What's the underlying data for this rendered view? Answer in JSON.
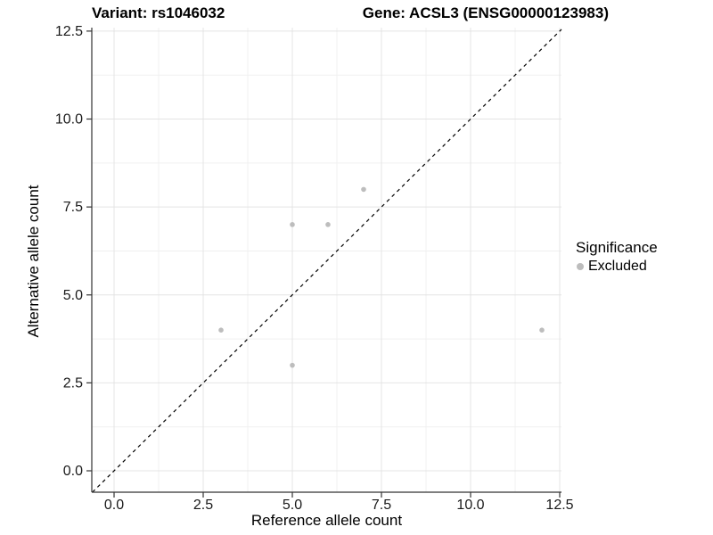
{
  "chart_data": {
    "type": "scatter",
    "title_left": "Variant: rs1046032",
    "title_right": "Gene: ACSL3 (ENSG00000123983)",
    "xlabel": "Reference allele count",
    "ylabel": "Alternative allele count",
    "xlim": [
      -0.625,
      12.55
    ],
    "ylim": [
      -0.61,
      12.6
    ],
    "x_ticks": [
      0.0,
      2.5,
      5.0,
      7.5,
      10.0,
      12.5
    ],
    "x_tick_labels": [
      "0.0",
      "2.5",
      "5.0",
      "7.5",
      "10.0",
      "12.5"
    ],
    "y_ticks": [
      0.0,
      2.5,
      5.0,
      7.5,
      10.0,
      12.5
    ],
    "y_tick_labels": [
      "0.0",
      "2.5",
      "5.0",
      "7.5",
      "10.0",
      "12.5"
    ],
    "minor_ticks": [
      1.25,
      3.75,
      6.25,
      8.75,
      11.25
    ],
    "grid": "major+minor",
    "identity_line": {
      "type": "y=x",
      "style": "dashed",
      "color": "#000000"
    },
    "series": [
      {
        "name": "Excluded",
        "color": "#bdbdbd",
        "points": [
          [
            3,
            4
          ],
          [
            5,
            3
          ],
          [
            5,
            7
          ],
          [
            6,
            7
          ],
          [
            7,
            8
          ],
          [
            12,
            4
          ]
        ]
      }
    ],
    "legend": {
      "title": "Significance",
      "position": "right",
      "items": [
        {
          "label": "Excluded",
          "color": "#bdbdbd"
        }
      ]
    },
    "colors": {
      "background": "#ffffff",
      "axis_line": "#333333",
      "grid_major": "#e4e4e4",
      "grid_minor": "#f0f0f0",
      "tick_text": "#1a1a1a",
      "point": "#bdbdbd"
    }
  }
}
